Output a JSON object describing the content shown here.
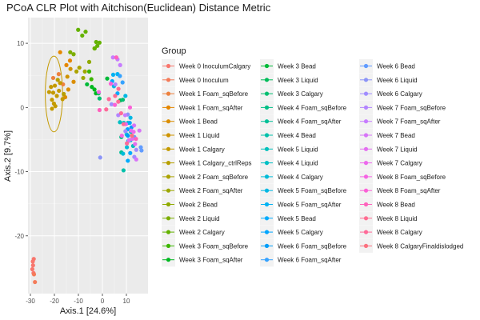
{
  "chart_data": {
    "type": "scatter",
    "title": "PCoA CLR Plot with Aitchison(Euclidean) Distance Metric",
    "xlabel": "Axis.1   [24.6%]",
    "ylabel": "Axis.2   [9.7%]",
    "xlim": [
      -31,
      19
    ],
    "ylim": [
      -29,
      14
    ],
    "xticks": [
      -30,
      -20,
      -10,
      0,
      10
    ],
    "xtick_labels": [
      "-30",
      "-20",
      "-10",
      "0",
      "10"
    ],
    "yticks": [
      -20,
      -10,
      0,
      10
    ],
    "ytick_labels": [
      "-20",
      "-10",
      "0",
      "10"
    ],
    "grid": true,
    "panel_background": "#ebebeb",
    "legend": {
      "title": "Group",
      "placement": "right",
      "columns": 3
    },
    "series": [
      {
        "name": "Week 0 InoculumCalgary",
        "color": "#f8766d",
        "points": [
          [
            -29,
            -24
          ],
          [
            -28.6,
            -23.6
          ],
          [
            -28.9,
            -24.6
          ],
          [
            -29.2,
            -25.2
          ],
          [
            -28.7,
            -25.8
          ]
        ]
      },
      {
        "name": "Week 0 Inoculum",
        "color": "#f47b59",
        "points": [
          [
            -28.5,
            -26
          ],
          [
            -28.1,
            -27.2
          ]
        ]
      },
      {
        "name": "Week 1 Foam_sqBefore",
        "color": "#ed813e",
        "points": [
          [
            -20.5,
            4.6
          ],
          [
            -18.2,
            5.2
          ],
          [
            -16.4,
            3.6
          ]
        ]
      },
      {
        "name": "Week 1 Foam_sqAfter",
        "color": "#e58700",
        "points": [
          [
            -15,
            6.6
          ],
          [
            -13.5,
            7.3
          ],
          [
            -17.6,
            8.6
          ]
        ]
      },
      {
        "name": "Week 1 Bead",
        "color": "#db8e00",
        "points": [
          [
            -12,
            4
          ],
          [
            -15.5,
            1.6
          ],
          [
            -14.2,
            2.8
          ]
        ]
      },
      {
        "name": "Week 1 Liquid",
        "color": "#cf9400",
        "points": [
          [
            -13.3,
            6
          ],
          [
            -14.6,
            4.8
          ]
        ]
      },
      {
        "name": "Week 1 Calgary",
        "color": "#c49a00",
        "points": [
          [
            -21,
            1.2
          ],
          [
            -20.5,
            2.3
          ],
          [
            -19.8,
            3.4
          ],
          [
            -21.4,
            3.2
          ],
          [
            -22.2,
            2.4
          ],
          [
            -20.2,
            0.6
          ],
          [
            -19,
            1.8
          ],
          [
            -18.1,
            2.6
          ],
          [
            -19.6,
            0.2
          ],
          [
            -21,
            -0.2
          ],
          [
            -17.6,
            3.8
          ],
          [
            -16.6,
            1.3
          ]
        ]
      },
      {
        "name": "Week 1 Calgary_ctrlReps",
        "color": "#b79f00",
        "points": [
          [
            -18.6,
            4.3
          ],
          [
            -16.1,
            2.1
          ]
        ]
      },
      {
        "name": "Week 2 Foam_sqBefore",
        "color": "#aba300",
        "points": [
          [
            -10.8,
            5.6
          ],
          [
            -9.6,
            6.2
          ]
        ]
      },
      {
        "name": "Week 2 Foam_sqAfter",
        "color": "#9da700",
        "points": [
          [
            -7.3,
            5.6
          ],
          [
            -8,
            4.6
          ]
        ]
      },
      {
        "name": "Week 2 Bead",
        "color": "#8faa00",
        "points": [
          [
            -5.5,
            7.1
          ],
          [
            -3.3,
            9.2
          ]
        ]
      },
      {
        "name": "Week 2 Liquid",
        "color": "#7cae00",
        "points": [
          [
            -12,
            8.3
          ],
          [
            -13.4,
            8.6
          ]
        ]
      },
      {
        "name": "Week 2 Calgary",
        "color": "#64b200",
        "points": [
          [
            -8.4,
            11.2
          ],
          [
            -7,
            11.8
          ],
          [
            -10.1,
            12.1
          ],
          [
            -2.6,
            10.2
          ],
          [
            -3.2,
            9.2
          ],
          [
            -1.2,
            10.1
          ],
          [
            -2.1,
            9.6
          ]
        ]
      },
      {
        "name": "Week 3 Foam_sqBefore",
        "color": "#3cb600",
        "points": [
          [
            -5.5,
            5.6
          ],
          [
            -4.6,
            4.4
          ]
        ]
      },
      {
        "name": "Week 3 Foam_sqAfter",
        "color": "#00b81f",
        "points": [
          [
            -4.4,
            3.2
          ],
          [
            -3.3,
            2.8
          ],
          [
            -2.7,
            2.2
          ]
        ]
      },
      {
        "name": "Week 3 Bead",
        "color": "#00ba38",
        "points": [
          [
            -6.4,
            3.6
          ],
          [
            2,
            4.5
          ]
        ]
      },
      {
        "name": "Week 3 Liquid",
        "color": "#00bc59",
        "points": [
          [
            -1.6,
            2.2
          ],
          [
            7.4,
            1.1
          ]
        ]
      },
      {
        "name": "Week 3 Calgary",
        "color": "#00be70",
        "points": [
          [
            -1.2,
            1.4
          ],
          [
            8.5,
            1.2
          ]
        ]
      },
      {
        "name": "Week 4 Foam_sqBefore",
        "color": "#00bf85",
        "points": [
          [
            7.9,
            -4.6
          ]
        ]
      },
      {
        "name": "Week 4 Foam_sqAfter",
        "color": "#00c098",
        "points": [
          [
            7.9,
            -7
          ]
        ]
      },
      {
        "name": "Week 4 Bead",
        "color": "#00c0aa",
        "points": [
          [
            8.8,
            -9.8
          ]
        ]
      },
      {
        "name": "Week 5 Liquid",
        "color": "#00c0bb",
        "points": [
          [
            11.9,
            -3.8
          ],
          [
            12.8,
            -6
          ]
        ]
      },
      {
        "name": "Week 4 Liquid",
        "color": "#00bfc4",
        "points": [
          [
            7.3,
            -2.3
          ],
          [
            8.9,
            -2.4
          ],
          [
            10.6,
            -2.4
          ]
        ]
      },
      {
        "name": "Week 4 Calgary",
        "color": "#00bcd8",
        "points": [
          [
            10.1,
            -4.2
          ],
          [
            11.7,
            -5.1
          ],
          [
            10.2,
            -6.2
          ],
          [
            8.6,
            -7.2
          ]
        ]
      },
      {
        "name": "Week 5 Foam_sqBefore",
        "color": "#00b8e3",
        "points": [
          [
            4.8,
            3.3
          ],
          [
            11.7,
            -1.6
          ],
          [
            9.6,
            1.8
          ]
        ]
      },
      {
        "name": "Week 5 Foam_sqAfter",
        "color": "#00b2f3",
        "points": [
          [
            6.3,
            5.2
          ],
          [
            4.5,
            5.1
          ],
          [
            10.8,
            -5.2
          ]
        ]
      },
      {
        "name": "Week 5 Bead",
        "color": "#00abfd",
        "points": [
          [
            4.1,
            4.1
          ],
          [
            6.3,
            2.2
          ],
          [
            11.6,
            -7.1
          ],
          [
            10.6,
            -8.3
          ]
        ]
      },
      {
        "name": "Week 5 Calgary",
        "color": "#00a5ff",
        "points": [
          [
            11.4,
            -2.4
          ],
          [
            10.5,
            -3.4
          ]
        ]
      },
      {
        "name": "Week 6 Foam_sqBefore",
        "color": "#009df9",
        "points": [
          [
            10.6,
            -4.4
          ],
          [
            12.1,
            -3.1
          ]
        ]
      },
      {
        "name": "Week 6 Foam_sqAfter",
        "color": "#35a2ff",
        "points": [
          [
            7.3,
            4.9
          ],
          [
            8.4,
            3.9
          ]
        ]
      },
      {
        "name": "Week 6 Bead",
        "color": "#619cff",
        "points": [
          [
            16,
            -6.2
          ],
          [
            16.3,
            -6.7
          ],
          [
            13.3,
            -4.6
          ]
        ]
      },
      {
        "name": "Week 6 Liquid",
        "color": "#8c94f7",
        "points": [
          [
            -0.9,
            -7.8
          ],
          [
            10.6,
            -1.1
          ]
        ]
      },
      {
        "name": "Week 6 Calgary",
        "color": "#a08cff",
        "points": [
          [
            3.8,
            0.5
          ],
          [
            9.6,
            -3.7
          ],
          [
            14.1,
            -6.6
          ],
          [
            13.3,
            -7.7
          ]
        ]
      },
      {
        "name": "Week 7 Foam_sqBefore",
        "color": "#b385ff",
        "points": [
          [
            5.4,
            3.6
          ],
          [
            6.6,
            -1.2
          ]
        ]
      },
      {
        "name": "Week 7 Foam_sqAfter",
        "color": "#c77cff",
        "points": [
          [
            6.3,
            7.5
          ],
          [
            7.4,
            6.6
          ],
          [
            4.4,
            7.8
          ],
          [
            9.5,
            -1.2
          ]
        ]
      },
      {
        "name": "Week 7 Bead",
        "color": "#d774f8",
        "points": [
          [
            13.2,
            -2.8
          ],
          [
            15.4,
            -3.6
          ],
          [
            14.1,
            -8.1
          ]
        ]
      },
      {
        "name": "Week 7 Liquid",
        "color": "#e36ef0",
        "points": [
          [
            12,
            -3.6
          ],
          [
            12.5,
            -4.9
          ],
          [
            11.1,
            -5.1
          ],
          [
            13.6,
            -5.7
          ]
        ]
      },
      {
        "name": "Week 7 Calgary",
        "color": "#ed68ed",
        "points": [
          [
            9.8,
            -2.6
          ],
          [
            13,
            -3.8
          ]
        ]
      },
      {
        "name": "Week 8 Foam_sqBefore",
        "color": "#f564e3",
        "points": [
          [
            -1.5,
            2.4
          ],
          [
            8.1,
            -4.4
          ]
        ]
      },
      {
        "name": "Week 8 Foam_sqAfter",
        "color": "#fb61d7",
        "points": [
          [
            5.2,
            0.4
          ],
          [
            3.5,
            3.7
          ],
          [
            11.5,
            0
          ]
        ]
      },
      {
        "name": "Week 8 Bead",
        "color": "#ff62bc",
        "points": [
          [
            -1.2,
            -0.4
          ],
          [
            5.8,
            7.8
          ],
          [
            14,
            -4.9
          ]
        ]
      },
      {
        "name": "Week 8 Liquid",
        "color": "#ff6c91",
        "points": [
          [
            6.7,
            2.9
          ],
          [
            5.3,
            1.8
          ]
        ]
      },
      {
        "name": "Week 8 Calgary",
        "color": "#ff6a98",
        "points": [
          [
            1.6,
            -0.3
          ],
          [
            2.7,
            1.3
          ],
          [
            6.6,
            0.9
          ],
          [
            7.8,
            -0.9
          ],
          [
            8.8,
            -2.6
          ],
          [
            10.2,
            -5.6
          ]
        ]
      },
      {
        "name": "Week 8 CalgaryFinaldislodged",
        "color": "#fc717f",
        "points": [
          [
            12.3,
            -4.4
          ]
        ]
      }
    ],
    "ellipse": {
      "color": "#c49a00",
      "center": [
        -20.2,
        2.1
      ],
      "rx": 3.6,
      "ry": 5.9
    }
  }
}
